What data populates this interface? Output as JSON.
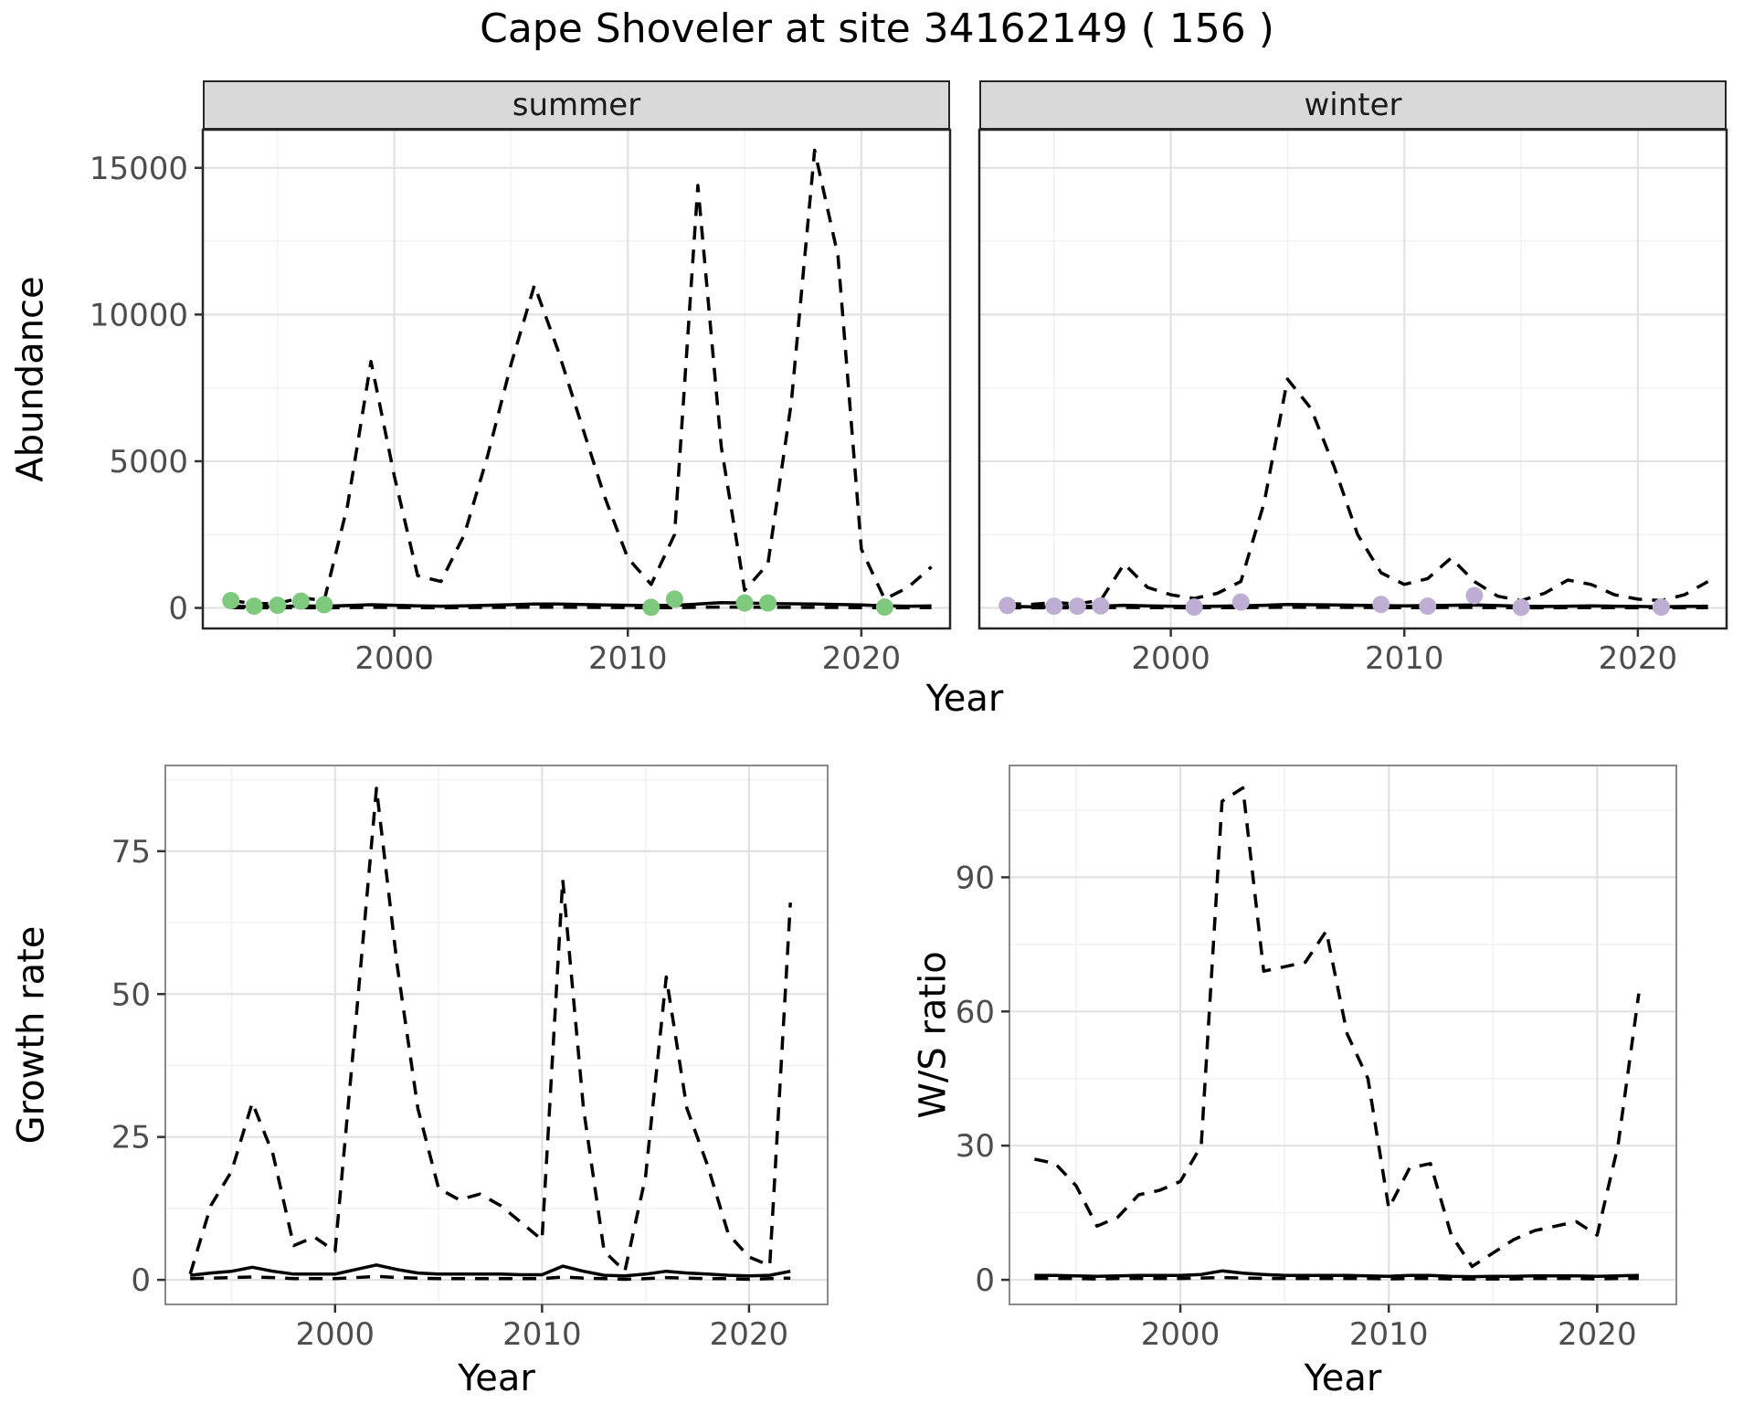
{
  "title": "Cape Shoveler at site 34162149 ( 156 )",
  "colors": {
    "line": "#000000",
    "summer_points": "#7FC97F",
    "winter_points": "#BEAED4",
    "strip_bg": "#D9D9D9",
    "grid_major": "#E2E2E2",
    "grid_minor": "#F2F2F2",
    "tick_label": "#4D4D4D",
    "tick_mark": "#333333"
  },
  "chart_data": [
    {
      "id": "abundance-summer",
      "type": "line",
      "facet": "summer",
      "xlabel": "Year",
      "ylabel": "Abundance",
      "xlim": [
        1991.8,
        2023.8
      ],
      "ylim": [
        -700,
        16300
      ],
      "xticks": [
        2000,
        2010,
        2020
      ],
      "yticks": [
        0,
        5000,
        10000,
        15000
      ],
      "xminor": [
        1995,
        2005,
        2015
      ],
      "yminor": [
        2500,
        7500,
        12500
      ],
      "x": [
        1993,
        1994,
        1995,
        1996,
        1997,
        1998,
        1999,
        2000,
        2001,
        2002,
        2003,
        2004,
        2005,
        2006,
        2007,
        2008,
        2009,
        2010,
        2011,
        2012,
        2013,
        2014,
        2015,
        2016,
        2017,
        2018,
        2019,
        2020,
        2021,
        2022,
        2023
      ],
      "series": [
        {
          "name": "upper-ci",
          "style": "dashed",
          "color": "#000000",
          "values": [
            250,
            150,
            150,
            350,
            250,
            3500,
            8400,
            4500,
            1100,
            900,
            2500,
            5200,
            8300,
            11000,
            8800,
            6300,
            3800,
            1700,
            800,
            2500,
            14400,
            5500,
            600,
            1500,
            7000,
            15600,
            12000,
            2000,
            300,
            700,
            1400
          ]
        },
        {
          "name": "fitted",
          "style": "solid",
          "color": "#000000",
          "values": [
            60,
            40,
            50,
            70,
            60,
            80,
            110,
            90,
            70,
            60,
            70,
            90,
            110,
            130,
            130,
            120,
            100,
            90,
            80,
            90,
            130,
            180,
            170,
            150,
            140,
            130,
            120,
            100,
            70,
            60,
            70
          ]
        },
        {
          "name": "lower-ci",
          "style": "dashed",
          "color": "#000000",
          "values": [
            10,
            5,
            5,
            10,
            5,
            10,
            20,
            15,
            10,
            5,
            10,
            15,
            20,
            25,
            25,
            20,
            15,
            10,
            10,
            10,
            20,
            30,
            25,
            20,
            20,
            20,
            15,
            10,
            5,
            5,
            10
          ]
        }
      ],
      "points": {
        "name": "observed",
        "color": "#7FC97F",
        "data": [
          [
            1993,
            250
          ],
          [
            1994,
            60
          ],
          [
            1995,
            90
          ],
          [
            1996,
            230
          ],
          [
            1997,
            110
          ],
          [
            2011,
            20
          ],
          [
            2012,
            300
          ],
          [
            2015,
            170
          ],
          [
            2016,
            170
          ],
          [
            2021,
            30
          ]
        ]
      }
    },
    {
      "id": "abundance-winter",
      "type": "line",
      "facet": "winter",
      "xlabel": "Year",
      "ylabel": "Abundance",
      "xlim": [
        1991.8,
        2023.8
      ],
      "ylim": [
        -700,
        16300
      ],
      "xticks": [
        2000,
        2010,
        2020
      ],
      "yticks": [
        0,
        5000,
        10000,
        15000
      ],
      "xminor": [
        1995,
        2005,
        2015
      ],
      "yminor": [
        2500,
        7500,
        12500
      ],
      "x": [
        1993,
        1994,
        1995,
        1996,
        1997,
        1998,
        1999,
        2000,
        2001,
        2002,
        2003,
        2004,
        2005,
        2006,
        2007,
        2008,
        2009,
        2010,
        2011,
        2012,
        2013,
        2014,
        2015,
        2016,
        2017,
        2018,
        2019,
        2020,
        2021,
        2022,
        2023
      ],
      "series": [
        {
          "name": "upper-ci",
          "style": "dashed",
          "color": "#000000",
          "values": [
            150,
            120,
            180,
            140,
            260,
            1500,
            700,
            450,
            320,
            500,
            900,
            3600,
            7800,
            6800,
            4800,
            2500,
            1200,
            800,
            1000,
            1700,
            900,
            400,
            250,
            500,
            950,
            800,
            450,
            300,
            250,
            450,
            900
          ]
        },
        {
          "name": "fitted",
          "style": "solid",
          "color": "#000000",
          "values": [
            50,
            40,
            40,
            50,
            60,
            90,
            70,
            60,
            50,
            60,
            70,
            90,
            120,
            110,
            100,
            90,
            80,
            70,
            80,
            90,
            100,
            80,
            60,
            50,
            60,
            70,
            60,
            50,
            40,
            50,
            60
          ]
        },
        {
          "name": "lower-ci",
          "style": "dashed",
          "color": "#000000",
          "values": [
            5,
            5,
            5,
            5,
            10,
            15,
            10,
            10,
            5,
            10,
            10,
            15,
            25,
            20,
            20,
            15,
            10,
            10,
            10,
            15,
            15,
            10,
            5,
            5,
            10,
            10,
            10,
            5,
            5,
            5,
            10
          ]
        }
      ],
      "points": {
        "name": "observed",
        "color": "#BEAED4",
        "data": [
          [
            1993,
            80
          ],
          [
            1995,
            60
          ],
          [
            1996,
            60
          ],
          [
            1997,
            70
          ],
          [
            2001,
            30
          ],
          [
            2003,
            200
          ],
          [
            2009,
            120
          ],
          [
            2011,
            60
          ],
          [
            2013,
            420
          ],
          [
            2015,
            20
          ],
          [
            2021,
            30
          ]
        ]
      }
    },
    {
      "id": "growth-rate",
      "type": "line",
      "facet": "",
      "xlabel": "Year",
      "ylabel": "Growth rate",
      "xlim": [
        1991.8,
        2023.8
      ],
      "ylim": [
        -4.3,
        90
      ],
      "xticks": [
        2000,
        2010,
        2020
      ],
      "yticks": [
        0,
        25,
        50,
        75
      ],
      "xminor": [
        1995,
        2005,
        2015
      ],
      "yminor": [
        12.5,
        37.5,
        62.5,
        87.5
      ],
      "x": [
        1993,
        1994,
        1995,
        1996,
        1997,
        1998,
        1999,
        2000,
        2001,
        2002,
        2003,
        2004,
        2005,
        2006,
        2007,
        2008,
        2009,
        2010,
        2011,
        2012,
        2013,
        2014,
        2015,
        2016,
        2017,
        2018,
        2019,
        2020,
        2021,
        2022
      ],
      "series": [
        {
          "name": "upper-ci",
          "style": "dashed",
          "color": "#000000",
          "values": [
            1,
            13,
            19,
            31,
            22,
            6,
            7.5,
            5,
            45,
            86,
            55,
            30,
            16,
            14,
            15,
            13,
            10,
            7,
            70,
            30,
            5,
            1.5,
            18,
            53,
            30,
            20,
            8,
            4,
            2.5,
            66
          ]
        },
        {
          "name": "fitted",
          "style": "solid",
          "color": "#000000",
          "values": [
            0.8,
            1.2,
            1.5,
            2.2,
            1.5,
            1,
            1,
            1,
            1.8,
            2.6,
            1.8,
            1.2,
            1,
            1,
            1,
            1,
            0.9,
            0.9,
            2.4,
            1.5,
            0.8,
            0.7,
            1,
            1.5,
            1.2,
            1,
            0.8,
            0.7,
            0.8,
            1.5
          ]
        },
        {
          "name": "lower-ci",
          "style": "dashed",
          "color": "#000000",
          "values": [
            0.2,
            0.3,
            0.4,
            0.5,
            0.4,
            0.2,
            0.2,
            0.2,
            0.4,
            0.6,
            0.4,
            0.3,
            0.2,
            0.2,
            0.2,
            0.2,
            0.2,
            0.2,
            0.5,
            0.3,
            0.2,
            0.1,
            0.2,
            0.4,
            0.3,
            0.2,
            0.2,
            0.1,
            0.2,
            0.3
          ]
        }
      ]
    },
    {
      "id": "ws-ratio",
      "type": "line",
      "facet": "",
      "xlabel": "Year",
      "ylabel": "W/S ratio",
      "xlim": [
        1991.8,
        2023.8
      ],
      "ylim": [
        -5.5,
        115
      ],
      "xticks": [
        2000,
        2010,
        2020
      ],
      "yticks": [
        0,
        30,
        60,
        90
      ],
      "xminor": [
        1995,
        2005,
        2015
      ],
      "yminor": [
        15,
        45,
        75,
        105
      ],
      "x": [
        1993,
        1994,
        1995,
        1996,
        1997,
        1998,
        1999,
        2000,
        2001,
        2002,
        2003,
        2004,
        2005,
        2006,
        2007,
        2008,
        2009,
        2010,
        2011,
        2012,
        2013,
        2014,
        2015,
        2016,
        2017,
        2018,
        2019,
        2020,
        2021,
        2022
      ],
      "series": [
        {
          "name": "upper-ci",
          "style": "dashed",
          "color": "#000000",
          "values": [
            27,
            26,
            21,
            12,
            14,
            19,
            20,
            22,
            30,
            107,
            110,
            69,
            70,
            71,
            78,
            55,
            45,
            16,
            25,
            26,
            10,
            3,
            6,
            9,
            11,
            12,
            13,
            10,
            30,
            64
          ]
        },
        {
          "name": "fitted",
          "style": "solid",
          "color": "#000000",
          "values": [
            1,
            1,
            0.9,
            0.8,
            0.9,
            1,
            1,
            1,
            1.2,
            2,
            1.5,
            1.2,
            1,
            1,
            1,
            1,
            0.9,
            0.8,
            1,
            1,
            0.8,
            0.7,
            0.8,
            0.8,
            0.9,
            0.9,
            0.9,
            0.8,
            0.9,
            1
          ]
        },
        {
          "name": "lower-ci",
          "style": "dashed",
          "color": "#000000",
          "values": [
            0.3,
            0.3,
            0.3,
            0.2,
            0.3,
            0.3,
            0.3,
            0.3,
            0.4,
            0.5,
            0.4,
            0.3,
            0.3,
            0.3,
            0.3,
            0.3,
            0.3,
            0.2,
            0.3,
            0.3,
            0.2,
            0.2,
            0.2,
            0.2,
            0.3,
            0.3,
            0.3,
            0.2,
            0.3,
            0.3
          ]
        }
      ]
    }
  ]
}
